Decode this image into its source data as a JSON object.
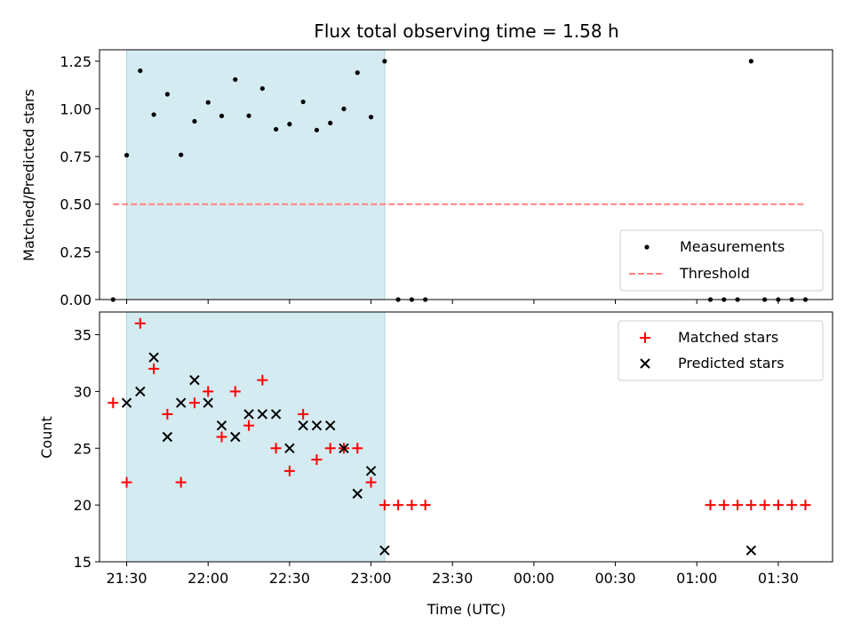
{
  "chart_data": [
    {
      "type": "scatter",
      "title": "Flux total observing time = 1.58 h",
      "ylabel": "Matched/Predicted stars",
      "xlim": [
        "21:20",
        "01:50"
      ],
      "ylim": [
        0,
        1.31
      ],
      "yticks": [
        "0.00",
        "0.25",
        "0.50",
        "0.75",
        "1.00",
        "1.25"
      ],
      "observing_window": [
        "21:30",
        "23:05"
      ],
      "window_color": "#d4ebf1",
      "legend_position": "lower right",
      "legend": {
        "measurements": "Measurements",
        "threshold": "Threshold"
      },
      "threshold": {
        "value": 0.5,
        "x": [
          "21:25",
          "01:40"
        ],
        "color": "#ff8080"
      },
      "series": [
        {
          "name": "Measurements",
          "color": "#000000",
          "points": [
            [
              "21:25",
              0.0
            ],
            [
              "21:30",
              0.757
            ],
            [
              "21:35",
              1.2
            ],
            [
              "21:40",
              0.97
            ],
            [
              "21:45",
              1.077
            ],
            [
              "21:50",
              0.759
            ],
            [
              "21:55",
              0.935
            ],
            [
              "22:00",
              1.034
            ],
            [
              "22:05",
              0.963
            ],
            [
              "22:10",
              1.154
            ],
            [
              "22:15",
              0.964
            ],
            [
              "22:20",
              1.107
            ],
            [
              "22:25",
              0.893
            ],
            [
              "22:30",
              0.92
            ],
            [
              "22:35",
              1.037
            ],
            [
              "22:40",
              0.889
            ],
            [
              "22:45",
              0.926
            ],
            [
              "22:50",
              1.0
            ],
            [
              "22:55",
              1.19
            ],
            [
              "23:00",
              0.957
            ],
            [
              "23:05",
              1.25
            ],
            [
              "23:10",
              0.0
            ],
            [
              "23:15",
              0.0
            ],
            [
              "23:20",
              0.0
            ],
            [
              "01:05",
              0.0
            ],
            [
              "01:10",
              0.0
            ],
            [
              "01:15",
              0.0
            ],
            [
              "01:20",
              1.25
            ],
            [
              "01:25",
              0.0
            ],
            [
              "01:30",
              0.0
            ],
            [
              "01:35",
              0.0
            ],
            [
              "01:40",
              0.0
            ]
          ]
        }
      ]
    },
    {
      "type": "scatter",
      "xlabel": "Time (UTC)",
      "ylabel": "Count",
      "xlim": [
        "21:20",
        "01:50"
      ],
      "ylim": [
        15,
        37
      ],
      "xticks": [
        "21:30",
        "22:00",
        "22:30",
        "23:00",
        "23:30",
        "00:00",
        "00:30",
        "01:00",
        "01:30"
      ],
      "yticks": [
        "15",
        "20",
        "25",
        "30",
        "35"
      ],
      "observing_window": [
        "21:30",
        "23:05"
      ],
      "window_color": "#d4ebf1",
      "legend_position": "upper right",
      "series": [
        {
          "name": "Matched stars",
          "marker": "plus",
          "color": "#ff0000",
          "points": [
            [
              "21:25",
              29
            ],
            [
              "21:30",
              22
            ],
            [
              "21:35",
              36
            ],
            [
              "21:40",
              32
            ],
            [
              "21:45",
              28
            ],
            [
              "21:50",
              22
            ],
            [
              "21:55",
              29
            ],
            [
              "22:00",
              30
            ],
            [
              "22:05",
              26
            ],
            [
              "22:10",
              30
            ],
            [
              "22:15",
              27
            ],
            [
              "22:20",
              31
            ],
            [
              "22:25",
              25
            ],
            [
              "22:30",
              23
            ],
            [
              "22:35",
              28
            ],
            [
              "22:40",
              24
            ],
            [
              "22:45",
              25
            ],
            [
              "22:50",
              25
            ],
            [
              "22:55",
              25
            ],
            [
              "23:00",
              22
            ],
            [
              "23:05",
              20
            ],
            [
              "23:10",
              20
            ],
            [
              "23:15",
              20
            ],
            [
              "23:20",
              20
            ],
            [
              "01:05",
              20
            ],
            [
              "01:10",
              20
            ],
            [
              "01:15",
              20
            ],
            [
              "01:20",
              20
            ],
            [
              "01:25",
              20
            ],
            [
              "01:30",
              20
            ],
            [
              "01:35",
              20
            ],
            [
              "01:40",
              20
            ]
          ]
        },
        {
          "name": "Predicted stars",
          "marker": "x",
          "color": "#000000",
          "points": [
            [
              "21:30",
              29
            ],
            [
              "21:35",
              30
            ],
            [
              "21:40",
              33
            ],
            [
              "21:45",
              26
            ],
            [
              "21:50",
              29
            ],
            [
              "21:55",
              31
            ],
            [
              "22:00",
              29
            ],
            [
              "22:05",
              27
            ],
            [
              "22:10",
              26
            ],
            [
              "22:15",
              28
            ],
            [
              "22:20",
              28
            ],
            [
              "22:25",
              28
            ],
            [
              "22:30",
              25
            ],
            [
              "22:35",
              27
            ],
            [
              "22:40",
              27
            ],
            [
              "22:45",
              27
            ],
            [
              "22:50",
              25
            ],
            [
              "22:55",
              21
            ],
            [
              "23:00",
              23
            ],
            [
              "23:05",
              16
            ],
            [
              "01:20",
              16
            ]
          ]
        }
      ]
    }
  ]
}
